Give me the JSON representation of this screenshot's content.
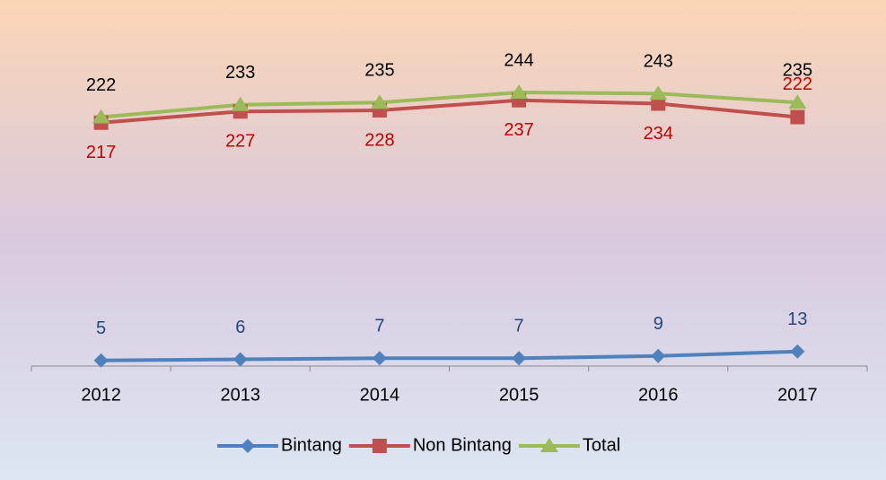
{
  "chart_data": {
    "type": "line",
    "categories": [
      "2012",
      "2013",
      "2014",
      "2015",
      "2016",
      "2017"
    ],
    "series": [
      {
        "name": "Bintang",
        "color": "#4f81bd",
        "label_color": "#1f497d",
        "marker": "diamond",
        "values": [
          5,
          6,
          7,
          7,
          9,
          13
        ]
      },
      {
        "name": "Non Bintang",
        "color": "#c0504d",
        "label_color": "#c00000",
        "marker": "square",
        "values": [
          217,
          227,
          228,
          237,
          234,
          222
        ]
      },
      {
        "name": "Total",
        "color": "#9bbb59",
        "label_color": "#000000",
        "marker": "triangle",
        "values": [
          222,
          233,
          235,
          244,
          243,
          235
        ]
      }
    ],
    "ylim": [
      0,
      300
    ],
    "legend": "bottom"
  }
}
